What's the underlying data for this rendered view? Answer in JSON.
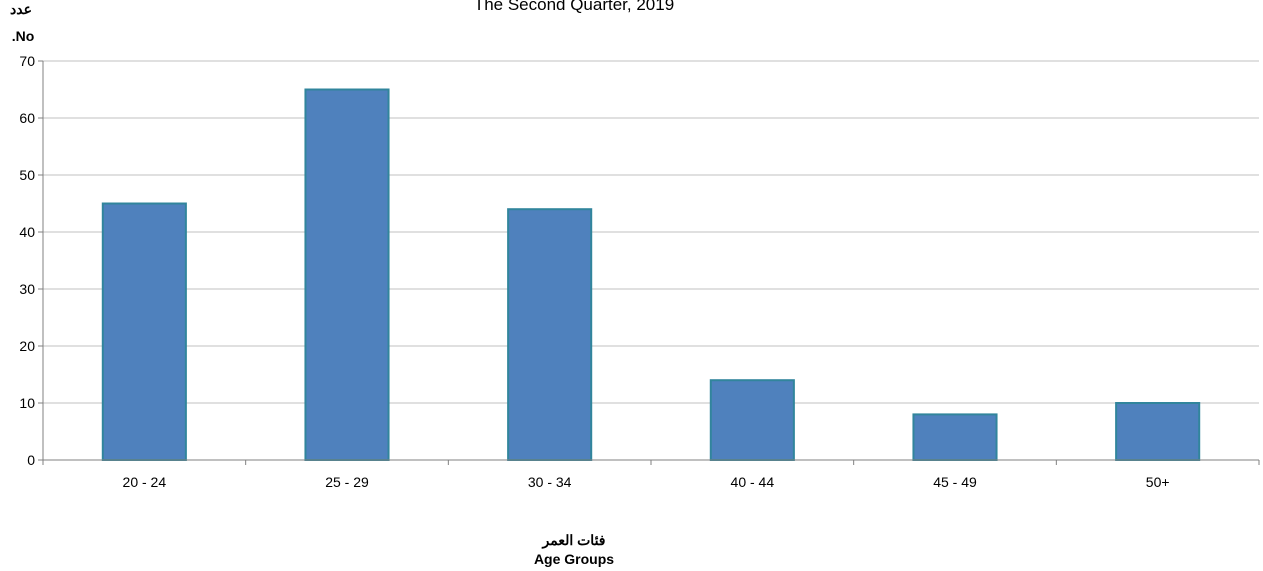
{
  "chart_data": {
    "type": "bar",
    "title": "The Second Quarter, 2019",
    "ylabel_ar": "عدد",
    "ylabel_en": ".No",
    "xlabel_ar": "فئات العمر",
    "xlabel_en": "Age Groups",
    "categories": [
      "20 - 24",
      "25 - 29",
      "30 - 34",
      "40 - 44",
      "45 - 49",
      "50+"
    ],
    "values": [
      45,
      65,
      44,
      14,
      8,
      10
    ],
    "ylim": [
      0,
      70
    ],
    "yticks": [
      0,
      10,
      20,
      30,
      40,
      50,
      60,
      70
    ],
    "grid": true,
    "legend": "none",
    "colors": {
      "bar_fill": "#4f81bd",
      "bar_stroke": "#31859c",
      "grid": "#c0c0c0",
      "axis": "#808080"
    }
  }
}
